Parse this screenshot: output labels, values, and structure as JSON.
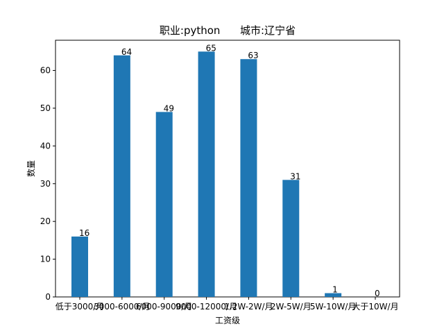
{
  "chart_data": {
    "type": "bar",
    "title": "职业:python      城市:辽宁省",
    "xlabel": "工资级",
    "ylabel": "数量",
    "categories": [
      "低于3000/月",
      "3000-6000/月",
      "6000-9000/月",
      "9000-12000/月",
      "1.2W-2W/月",
      "2W-5W/月",
      "5W-10W/月",
      "大于10W/月"
    ],
    "values": [
      16,
      64,
      49,
      65,
      63,
      31,
      1,
      0
    ],
    "ylim": [
      0,
      68
    ],
    "yticks": [
      0,
      10,
      20,
      30,
      40,
      50,
      60
    ],
    "colors": {
      "bar": "#1f77b4",
      "axis": "#000000",
      "background": "#ffffff"
    },
    "grid": false,
    "legend": "none"
  }
}
